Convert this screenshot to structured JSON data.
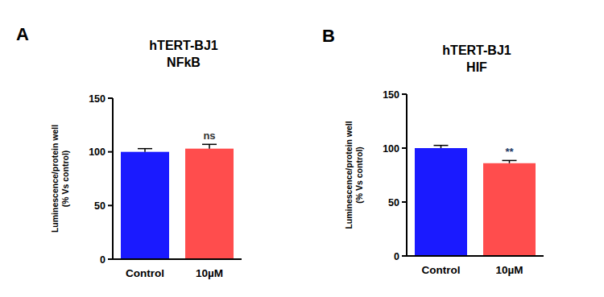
{
  "chart_data": [
    {
      "type": "bar",
      "label": "A",
      "title": "hTERT-BJ1\nNFkB",
      "y_label": "Luminescence/protein well\n(% Vs control)",
      "categories": [
        "Control",
        "10µM"
      ],
      "values": [
        100,
        103
      ],
      "errors": [
        3,
        4
      ],
      "significance": [
        null,
        "ns"
      ],
      "colors": [
        "#1a1aff",
        "#ff4d4d"
      ],
      "ylim": [
        0,
        150
      ],
      "yticks": [
        0,
        50,
        100,
        150
      ],
      "grid": false
    },
    {
      "type": "bar",
      "label": "B",
      "title": "hTERT-BJ1\nHIF",
      "y_label": "Luminescence/protein well\n(% Vs control)",
      "categories": [
        "Control",
        "10µM"
      ],
      "values": [
        100,
        86
      ],
      "errors": [
        2.5,
        2.5
      ],
      "significance": [
        null,
        "**"
      ],
      "colors": [
        "#1a1aff",
        "#ff4d4d"
      ],
      "ylim": [
        0,
        150
      ],
      "yticks": [
        0,
        50,
        100,
        150
      ],
      "grid": false
    }
  ]
}
